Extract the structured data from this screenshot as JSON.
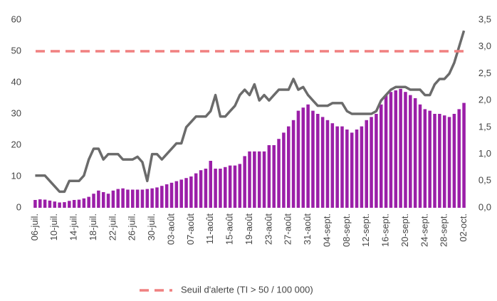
{
  "chart_data": {
    "type": "bar",
    "categories": [
      "06-juil.",
      null,
      null,
      null,
      "10-juil.",
      null,
      null,
      null,
      "14-juil.",
      null,
      null,
      null,
      "18-juil.",
      null,
      null,
      null,
      "22-juil.",
      null,
      null,
      null,
      "26-juil.",
      null,
      null,
      null,
      "30-juil.",
      null,
      null,
      null,
      "03-août",
      null,
      null,
      null,
      "07-août",
      null,
      null,
      null,
      "11-août",
      null,
      null,
      null,
      "15-août",
      null,
      null,
      null,
      "19-août",
      null,
      null,
      null,
      "23-août",
      null,
      null,
      null,
      "27-août",
      null,
      null,
      null,
      "31-août",
      null,
      null,
      null,
      "04-sept.",
      null,
      null,
      null,
      "08-sept.",
      null,
      null,
      null,
      "12-sept.",
      null,
      null,
      null,
      "16-sept.",
      null,
      null,
      null,
      "20-sept.",
      null,
      null,
      null,
      "24-sept.",
      null,
      null,
      null,
      "28-sept.",
      null,
      null,
      null,
      "02-oct."
    ],
    "series": [
      {
        "type": "bar",
        "color": "#9b1fa8",
        "values": [
          2.5,
          2.7,
          2.6,
          2.3,
          2.0,
          1.7,
          1.8,
          2.2,
          2.5,
          2.6,
          3.0,
          3.5,
          4.5,
          5.5,
          5.0,
          4.5,
          5.5,
          6.0,
          6.2,
          5.8,
          5.8,
          5.8,
          5.8,
          6.0,
          6.2,
          6.5,
          7,
          7.5,
          8,
          8.5,
          9,
          9.5,
          10,
          11,
          12,
          12.5,
          15,
          12.5,
          12.5,
          13,
          13.5,
          13.5,
          14,
          16.5,
          18,
          18,
          18,
          18,
          20,
          20,
          22,
          24,
          26,
          28,
          31,
          32,
          33,
          31,
          30,
          29,
          28,
          27,
          26,
          26,
          25,
          24,
          25,
          26,
          28,
          29,
          30,
          33,
          36,
          37,
          37.5,
          38,
          37,
          36,
          35,
          33,
          31.5,
          31,
          30,
          30,
          29.5,
          29,
          30,
          31.5,
          33.5
        ]
      },
      {
        "type": "line",
        "axis": "y2",
        "color": "#6b6b6b",
        "values": [
          0.6,
          0.6,
          0.6,
          0.5,
          0.4,
          0.3,
          0.3,
          0.5,
          0.5,
          0.5,
          0.6,
          0.9,
          1.1,
          1.1,
          0.9,
          1.0,
          1.0,
          1.0,
          0.9,
          0.9,
          0.9,
          0.95,
          0.85,
          0.5,
          1.0,
          1.0,
          0.9,
          1.0,
          1.1,
          1.2,
          1.2,
          1.5,
          1.6,
          1.7,
          1.7,
          1.7,
          1.8,
          2.1,
          1.7,
          1.7,
          1.8,
          1.9,
          2.1,
          2.2,
          2.1,
          2.3,
          2.0,
          2.1,
          2.0,
          2.1,
          2.2,
          2.2,
          2.2,
          2.4,
          2.2,
          2.25,
          2.1,
          2.0,
          1.9,
          1.9,
          1.9,
          1.95,
          1.95,
          1.95,
          1.8,
          1.75,
          1.75,
          1.75,
          1.75,
          1.75,
          1.8,
          2.0,
          2.1,
          2.2,
          2.25,
          2.25,
          2.25,
          2.2,
          2.2,
          2.2,
          2.1,
          2.1,
          2.3,
          2.4,
          2.4,
          2.5,
          2.7,
          3.0,
          3.3
        ]
      }
    ],
    "threshold": {
      "name": "Seuil d'alerte (TI > 50 / 100 000)",
      "value": 50,
      "color": "#f08080"
    },
    "ylim": [
      0,
      60
    ],
    "yticks": [
      0,
      10,
      20,
      30,
      40,
      50,
      60
    ],
    "y2lim": [
      0,
      3.5
    ],
    "y2ticks": [
      {
        "value": 0,
        "label": "0,0"
      },
      {
        "value": 0.5,
        "label": "0,5"
      },
      {
        "value": 1,
        "label": "1,0"
      },
      {
        "value": 1.5,
        "label": "1,5"
      },
      {
        "value": 2,
        "label": "2,0"
      },
      {
        "value": 2.5,
        "label": "2,5"
      },
      {
        "value": 3,
        "label": "3,0"
      },
      {
        "value": 3.5,
        "label": "3,5"
      }
    ],
    "legend": "bottom"
  }
}
